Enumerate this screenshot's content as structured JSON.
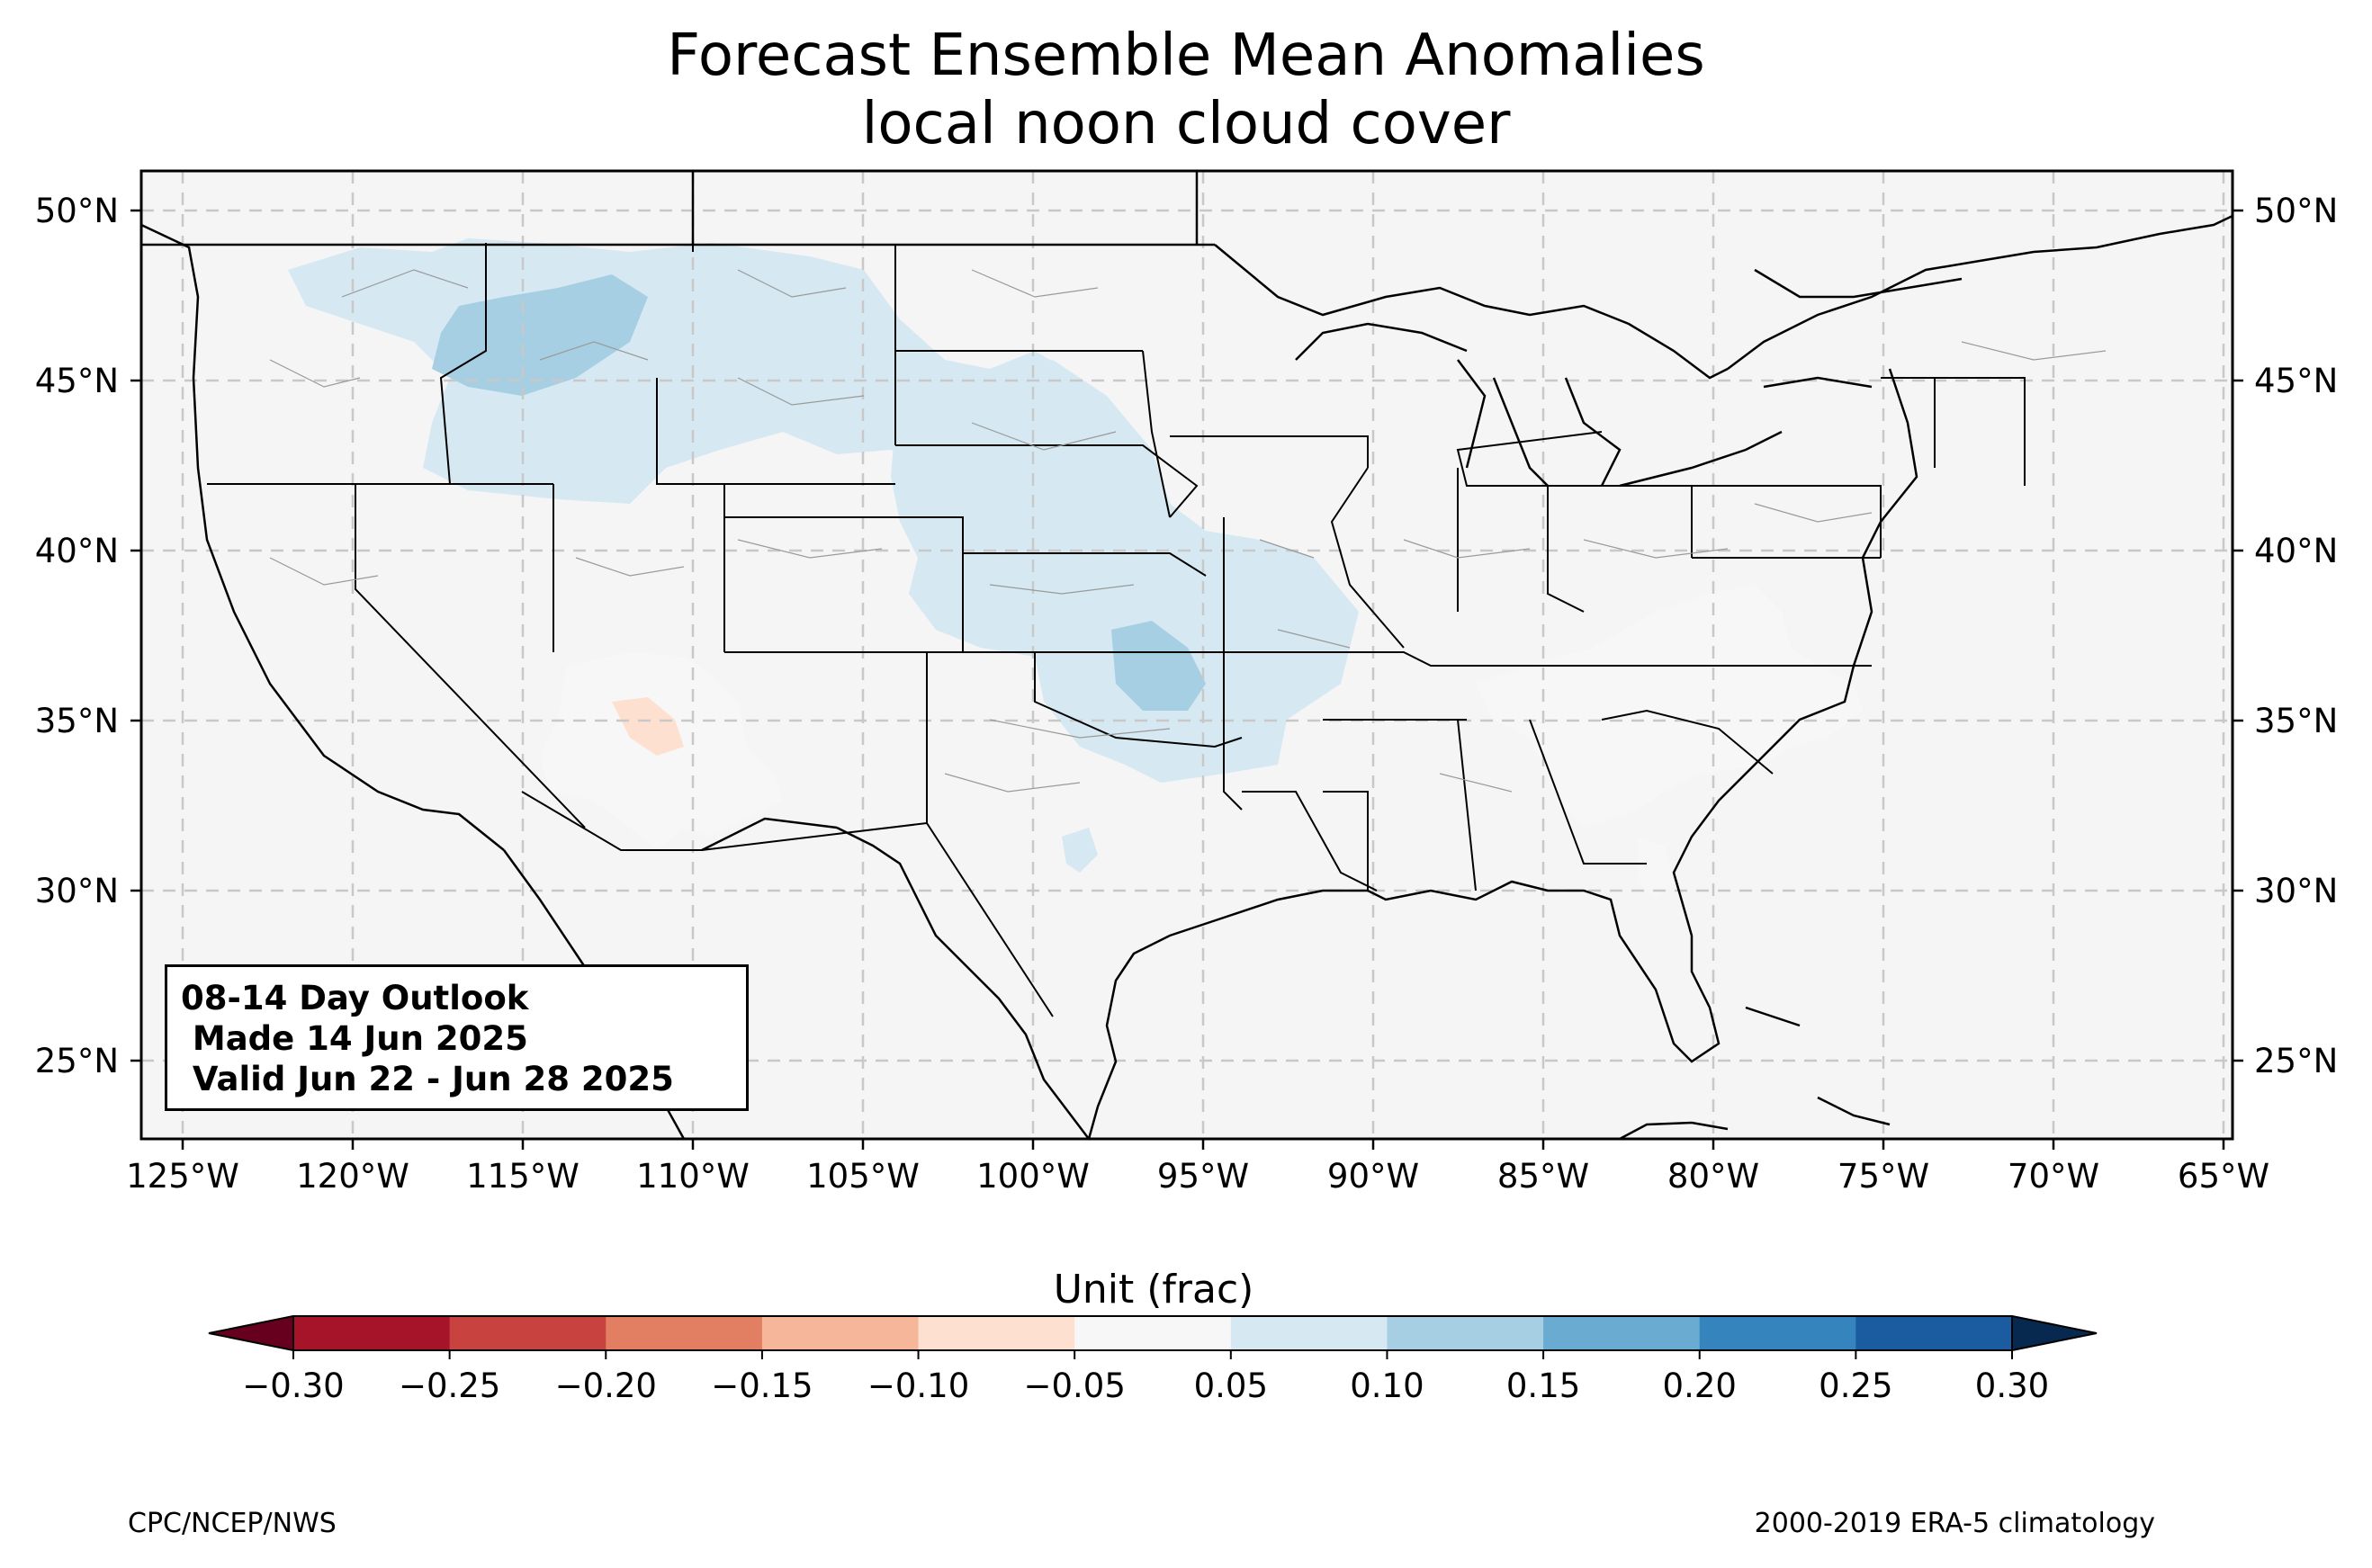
{
  "title": {
    "line1": "Forecast Ensemble Mean Anomalies",
    "line2": "local noon cloud cover"
  },
  "info_box": {
    "line1": "08-14 Day Outlook",
    "line2": " Made 14 Jun 2025",
    "line3": " Valid Jun 22 - Jun 28 2025"
  },
  "axes": {
    "lon_ticks": [
      "125°W",
      "120°W",
      "115°W",
      "110°W",
      "105°W",
      "100°W",
      "95°W",
      "90°W",
      "85°W",
      "80°W",
      "75°W",
      "70°W",
      "65°W"
    ],
    "lat_ticks": [
      "50°N",
      "45°N",
      "40°N",
      "35°N",
      "30°N",
      "25°N"
    ],
    "lon_range": [
      -126.3,
      -64.8
    ],
    "lat_range": [
      22.8,
      51.2
    ],
    "grid": true
  },
  "colorbar": {
    "label": "Unit (frac)",
    "tick_labels": [
      "−0.30",
      "−0.25",
      "−0.20",
      "−0.15",
      "−0.10",
      "−0.05",
      "0.05",
      "0.10",
      "0.15",
      "0.20",
      "0.25",
      "0.30"
    ],
    "levels": [
      -0.3,
      -0.25,
      -0.2,
      -0.15,
      -0.1,
      -0.05,
      0.05,
      0.1,
      0.15,
      0.2,
      0.25,
      0.3
    ],
    "colors": [
      "#a51429",
      "#c8423f",
      "#e27f62",
      "#f5b699",
      "#fde0d0",
      "#f7f7f7",
      "#d6e8f2",
      "#a7cfe3",
      "#6aabd1",
      "#3584be",
      "#1b5b9f"
    ],
    "under_color": "#67001f",
    "over_color": "#07284f",
    "orientation": "horizontal",
    "extend": "both"
  },
  "map": {
    "background_color": "#f5f5f5",
    "anomaly_regions": [
      {
        "name": "northern-rockies",
        "level": 0.05
      },
      {
        "name": "northern-rockies-core",
        "level": 0.1
      },
      {
        "name": "central-plains",
        "level": 0.05
      },
      {
        "name": "kansas-oklahoma-core",
        "level": 0.1
      },
      {
        "name": "arizona-new-mexico",
        "level": -0.05
      },
      {
        "name": "arizona-core",
        "level": -0.1
      },
      {
        "name": "southeast",
        "level": -0.05
      }
    ]
  },
  "footer": {
    "left": "CPC/NCEP/NWS",
    "right": "2000-2019 ERA-5 climatology"
  }
}
